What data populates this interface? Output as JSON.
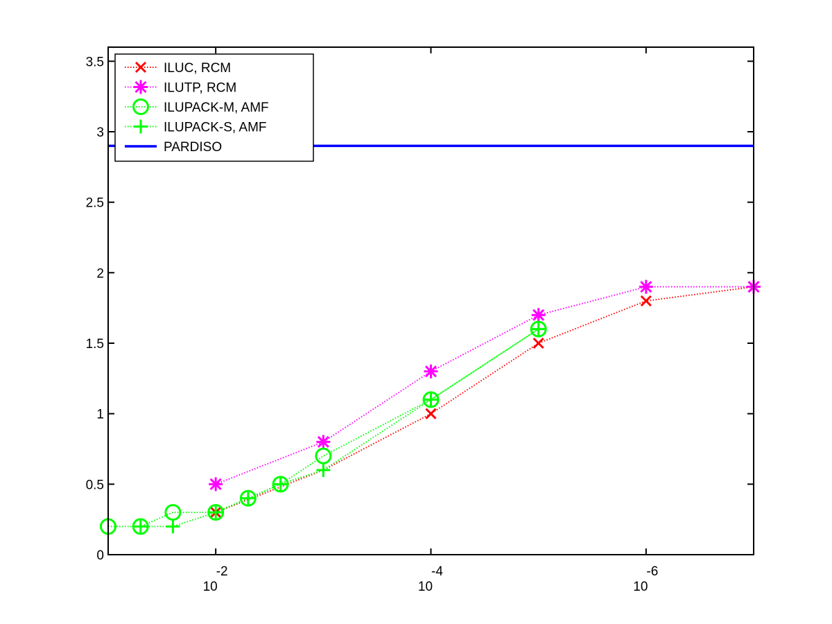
{
  "chart_data": {
    "type": "line",
    "xlabel": "",
    "ylabel": "",
    "title": "",
    "x_scale": "log",
    "x_direction": "decreasing",
    "xlim": [
      0.1,
      1e-07
    ],
    "ylim": [
      0,
      3.6
    ],
    "yticks": [
      0,
      0.5,
      1,
      1.5,
      2,
      2.5,
      3,
      3.5
    ],
    "ytick_labels": [
      "0",
      "0.5",
      "1",
      "1.5",
      "2",
      "2.5",
      "3",
      "3.5"
    ],
    "xticks": [
      {
        "value": 0.01,
        "base": "10",
        "exponent": "-2"
      },
      {
        "value": 0.0001,
        "base": "10",
        "exponent": "-4"
      },
      {
        "value": 1e-06,
        "base": "10",
        "exponent": "-6"
      }
    ],
    "grid": false,
    "legend_position": "top-left",
    "series": [
      {
        "name": "ILUC, RCM",
        "color": "#ff0000",
        "marker": "x",
        "line_style": "dotted",
        "points": [
          {
            "x": 0.01,
            "y": 0.3
          },
          {
            "x": 0.0001,
            "y": 1.0
          },
          {
            "x": 1e-05,
            "y": 1.5
          },
          {
            "x": 1e-06,
            "y": 1.8
          },
          {
            "x": 1e-07,
            "y": 1.9
          }
        ],
        "line_only": [
          {
            "x": 0.001,
            "y": 0.6
          }
        ]
      },
      {
        "name": "ILUTP, RCM",
        "color": "#ff00ff",
        "marker": "asterisk",
        "line_style": "dotted",
        "points": [
          {
            "x": 0.01,
            "y": 0.5
          },
          {
            "x": 0.001,
            "y": 0.8
          },
          {
            "x": 0.0001,
            "y": 1.3
          },
          {
            "x": 1e-05,
            "y": 1.7
          },
          {
            "x": 1e-06,
            "y": 1.9
          },
          {
            "x": 1e-07,
            "y": 1.9
          }
        ]
      },
      {
        "name": "ILUPACK-M, AMF",
        "color": "#00ff00",
        "marker": "circle",
        "line_style": "dotted",
        "points": [
          {
            "x": 0.1,
            "y": 0.2
          },
          {
            "x": 0.05,
            "y": 0.2
          },
          {
            "x": 0.025,
            "y": 0.3
          },
          {
            "x": 0.01,
            "y": 0.3
          },
          {
            "x": 0.005,
            "y": 0.4
          },
          {
            "x": 0.0025,
            "y": 0.5
          },
          {
            "x": 0.001,
            "y": 0.7
          },
          {
            "x": 0.0001,
            "y": 1.1
          },
          {
            "x": 1e-05,
            "y": 1.6
          }
        ]
      },
      {
        "name": "ILUPACK-S, AMF",
        "color": "#00ff00",
        "marker": "plus",
        "line_style": "dotted",
        "points": [
          {
            "x": 0.05,
            "y": 0.2
          },
          {
            "x": 0.025,
            "y": 0.2
          },
          {
            "x": 0.01,
            "y": 0.3
          },
          {
            "x": 0.005,
            "y": 0.4
          },
          {
            "x": 0.0025,
            "y": 0.5
          },
          {
            "x": 0.001,
            "y": 0.6
          },
          {
            "x": 0.0001,
            "y": 1.1
          },
          {
            "x": 1e-05,
            "y": 1.6
          }
        ]
      },
      {
        "name": "PARDISO",
        "color": "#0000ff",
        "marker": "none",
        "line_style": "solid",
        "points": [
          {
            "x": 0.1,
            "y": 2.9
          },
          {
            "x": 1e-07,
            "y": 2.9
          }
        ]
      }
    ]
  }
}
